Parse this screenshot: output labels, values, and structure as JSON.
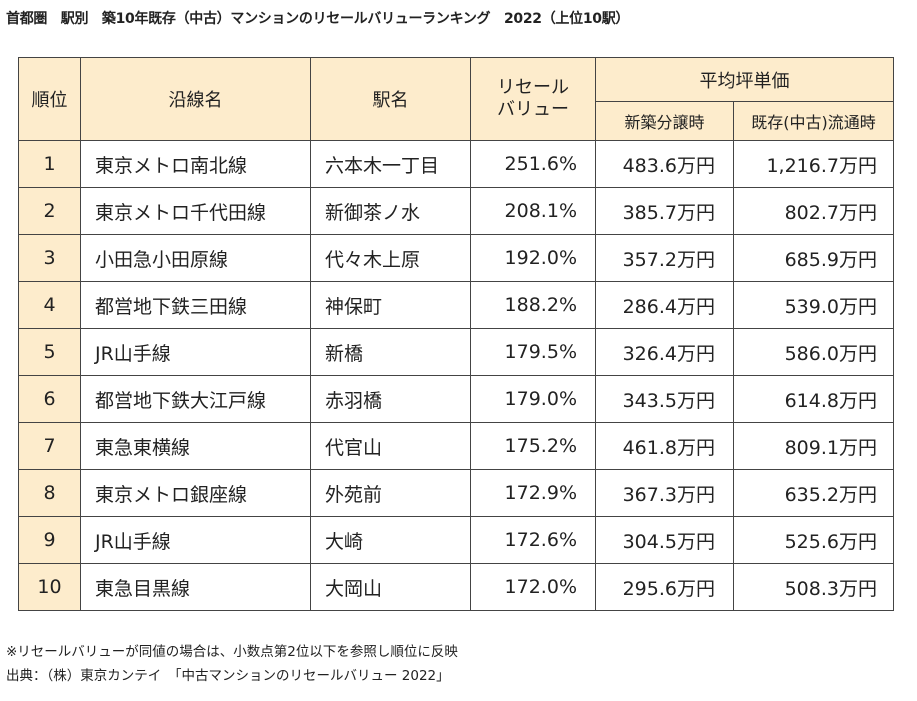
{
  "title": "首都圏　駅別　築10年既存（中古）マンションのリセールバリューランキング　2022（上位10駅）",
  "headers": {
    "rank": "順位",
    "line": "沿線名",
    "station": "駅名",
    "resale": "リセール\nバリュー",
    "avg_price": "平均坪単価",
    "new": "新築分譲時",
    "used": "既存(中古)流通時"
  },
  "rows": [
    {
      "rank": "1",
      "line": "東京メトロ南北線",
      "station": "六本木一丁目",
      "resale": "251.6%",
      "new": "483.6万円",
      "used": "1,216.7万円"
    },
    {
      "rank": "2",
      "line": "東京メトロ千代田線",
      "station": "新御茶ノ水",
      "resale": "208.1%",
      "new": "385.7万円",
      "used": "802.7万円"
    },
    {
      "rank": "3",
      "line": "小田急小田原線",
      "station": "代々木上原",
      "resale": "192.0%",
      "new": "357.2万円",
      "used": "685.9万円"
    },
    {
      "rank": "4",
      "line": "都営地下鉄三田線",
      "station": "神保町",
      "resale": "188.2%",
      "new": "286.4万円",
      "used": "539.0万円"
    },
    {
      "rank": "5",
      "line": "JR山手線",
      "station": "新橋",
      "resale": "179.5%",
      "new": "326.4万円",
      "used": "586.0万円"
    },
    {
      "rank": "6",
      "line": "都営地下鉄大江戸線",
      "station": "赤羽橋",
      "resale": "179.0%",
      "new": "343.5万円",
      "used": "614.8万円"
    },
    {
      "rank": "7",
      "line": "東急東横線",
      "station": "代官山",
      "resale": "175.2%",
      "new": "461.8万円",
      "used": "809.1万円"
    },
    {
      "rank": "8",
      "line": "東京メトロ銀座線",
      "station": "外苑前",
      "resale": "172.9%",
      "new": "367.3万円",
      "used": "635.2万円"
    },
    {
      "rank": "9",
      "line": "JR山手線",
      "station": "大崎",
      "resale": "172.6%",
      "new": "304.5万円",
      "used": "525.6万円"
    },
    {
      "rank": "10",
      "line": "東急目黒線",
      "station": "大岡山",
      "resale": "172.0%",
      "new": "295.6万円",
      "used": "508.3万円"
    }
  ],
  "notes": {
    "note1": "※リセールバリューが同値の場合は、小数点第2位以下を参照し順位に反映",
    "source": "出典：（株）東京カンテイ　「中古マンションのリセールバリュー 2022」"
  }
}
